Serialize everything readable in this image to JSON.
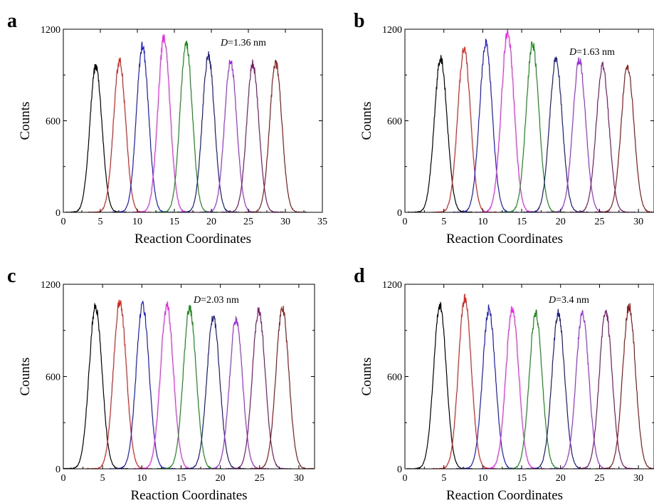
{
  "figure": {
    "panels": [
      "a",
      "b",
      "c",
      "d"
    ]
  },
  "chart_data": [
    {
      "panel": "a",
      "type": "line",
      "annotation": {
        "symbol": "D",
        "text": "=1.36 nm"
      },
      "xlabel": "Reaction Coordinates",
      "ylabel": "Counts",
      "xlim": [
        0,
        35
      ],
      "ylim": [
        0,
        1200
      ],
      "xticks": [
        0,
        5,
        10,
        15,
        20,
        25,
        30,
        35
      ],
      "yticks": [
        0,
        600,
        1200
      ],
      "series": [
        {
          "color": "#000000",
          "center": 4.4,
          "peak": 960
        },
        {
          "color": "#e0201a",
          "center": 7.6,
          "peak": 990
        },
        {
          "color": "#1a1ad0",
          "center": 10.7,
          "peak": 1090
        },
        {
          "color": "#ee22ee",
          "center": 13.6,
          "peak": 1140
        },
        {
          "color": "#1a8a1a",
          "center": 16.6,
          "peak": 1110
        },
        {
          "color": "#1a1a80",
          "center": 19.6,
          "peak": 1030
        },
        {
          "color": "#9a30e0",
          "center": 22.6,
          "peak": 990
        },
        {
          "color": "#7a1a6a",
          "center": 25.6,
          "peak": 970
        },
        {
          "color": "#8a1a1a",
          "center": 28.7,
          "peak": 980
        }
      ]
    },
    {
      "panel": "b",
      "type": "line",
      "annotation": {
        "symbol": "D",
        "text": "=1.63 nm"
      },
      "xlabel": "Reaction Coordinates",
      "ylabel": "Counts",
      "xlim": [
        0,
        32
      ],
      "ylim": [
        0,
        1200
      ],
      "xticks": [
        0,
        5,
        10,
        15,
        20,
        25,
        30
      ],
      "yticks": [
        0,
        600,
        1200
      ],
      "series": [
        {
          "color": "#000000",
          "center": 4.6,
          "peak": 1010
        },
        {
          "color": "#e0201a",
          "center": 7.6,
          "peak": 1070
        },
        {
          "color": "#1a1ad0",
          "center": 10.4,
          "peak": 1100
        },
        {
          "color": "#ee22ee",
          "center": 13.2,
          "peak": 1180
        },
        {
          "color": "#1a8a1a",
          "center": 16.4,
          "peak": 1100
        },
        {
          "color": "#1a1a80",
          "center": 19.4,
          "peak": 1000
        },
        {
          "color": "#9a30e0",
          "center": 22.4,
          "peak": 1000
        },
        {
          "color": "#7a1a6a",
          "center": 25.4,
          "peak": 960
        },
        {
          "color": "#8a1a1a",
          "center": 28.6,
          "peak": 960
        }
      ]
    },
    {
      "panel": "c",
      "type": "line",
      "annotation": {
        "symbol": "D",
        "text": "=2.03 nm"
      },
      "xlabel": "Reaction Coordinates",
      "ylabel": "Counts",
      "xlim": [
        0,
        32
      ],
      "ylim": [
        0,
        1200
      ],
      "xticks": [
        0,
        5,
        10,
        15,
        20,
        25,
        30
      ],
      "yticks": [
        0,
        600,
        1200
      ],
      "series": [
        {
          "color": "#000000",
          "center": 4.1,
          "peak": 1060
        },
        {
          "color": "#e0201a",
          "center": 7.2,
          "peak": 1090
        },
        {
          "color": "#1a1ad0",
          "center": 10.1,
          "peak": 1070
        },
        {
          "color": "#ee22ee",
          "center": 13.2,
          "peak": 1060
        },
        {
          "color": "#1a8a1a",
          "center": 16.1,
          "peak": 1040
        },
        {
          "color": "#1a1a80",
          "center": 19.1,
          "peak": 990
        },
        {
          "color": "#9a30e0",
          "center": 22.0,
          "peak": 970
        },
        {
          "color": "#7a1a6a",
          "center": 24.9,
          "peak": 1030
        },
        {
          "color": "#8a1a1a",
          "center": 27.9,
          "peak": 1040
        }
      ]
    },
    {
      "panel": "d",
      "type": "line",
      "annotation": {
        "symbol": "D",
        "text": "=3.4 nm"
      },
      "xlabel": "Reaction Coordinates",
      "ylabel": "Counts",
      "xlim": [
        0,
        32
      ],
      "ylim": [
        0,
        1200
      ],
      "xticks": [
        0,
        5,
        10,
        15,
        20,
        25,
        30
      ],
      "yticks": [
        0,
        600,
        1200
      ],
      "series": [
        {
          "color": "#000000",
          "center": 4.5,
          "peak": 1060
        },
        {
          "color": "#e0201a",
          "center": 7.7,
          "peak": 1110
        },
        {
          "color": "#1a1ad0",
          "center": 10.8,
          "peak": 1040
        },
        {
          "color": "#ee22ee",
          "center": 13.8,
          "peak": 1040
        },
        {
          "color": "#1a8a1a",
          "center": 16.8,
          "peak": 1010
        },
        {
          "color": "#1a1a80",
          "center": 19.7,
          "peak": 1010
        },
        {
          "color": "#9a30e0",
          "center": 22.8,
          "peak": 1010
        },
        {
          "color": "#7a1a6a",
          "center": 25.8,
          "peak": 1020
        },
        {
          "color": "#8a1a1a",
          "center": 28.8,
          "peak": 1060
        }
      ]
    }
  ]
}
